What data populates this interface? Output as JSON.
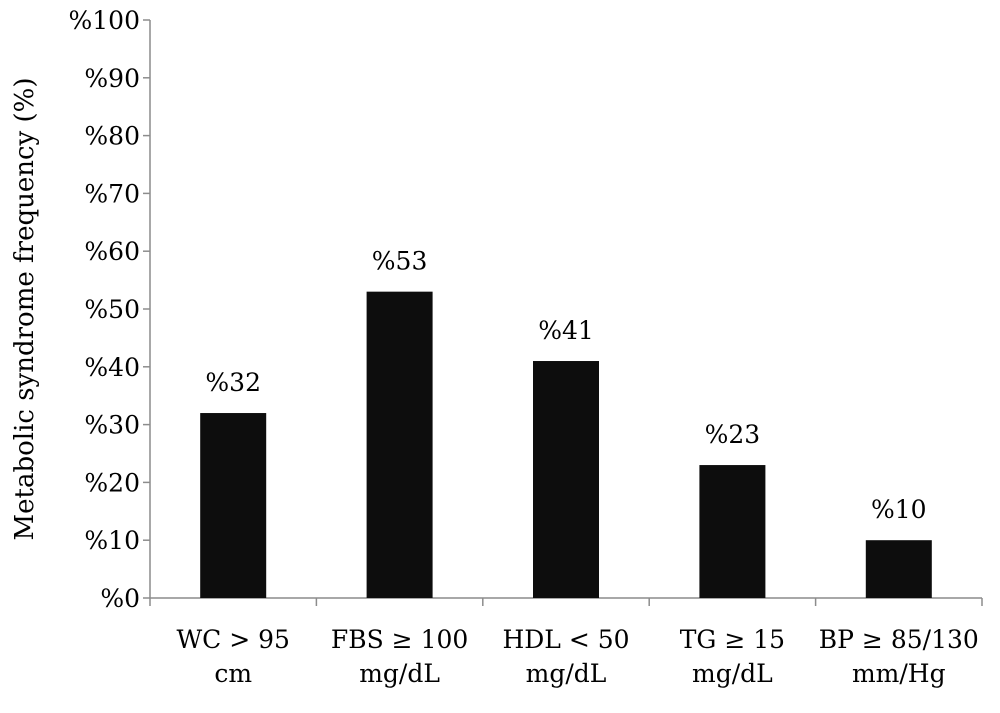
{
  "chart_data": {
    "type": "bar",
    "ylabel": "Metabolic syndrome frequency (%)",
    "ylim": [
      0,
      100
    ],
    "yticks": [
      0,
      10,
      20,
      30,
      40,
      50,
      60,
      70,
      80,
      90,
      100
    ],
    "ytick_labels": [
      "%0",
      "%10",
      "%20",
      "%30",
      "%40",
      "%50",
      "%60",
      "%70",
      "%80",
      "%90",
      "%100"
    ],
    "categories": [
      [
        "WC > 95",
        "cm"
      ],
      [
        "FBS ≥ 100",
        "mg/dL"
      ],
      [
        "HDL < 50",
        "mg/dL"
      ],
      [
        "TG ≥ 15",
        "mg/dL"
      ],
      [
        "BP ≥ 85/130",
        "mm/Hg"
      ]
    ],
    "values": [
      32,
      53,
      41,
      23,
      10
    ],
    "value_labels": [
      "%32",
      "%53",
      "%41",
      "%23",
      "%10"
    ],
    "bar_color": "#0d0d0d",
    "grid": false
  }
}
